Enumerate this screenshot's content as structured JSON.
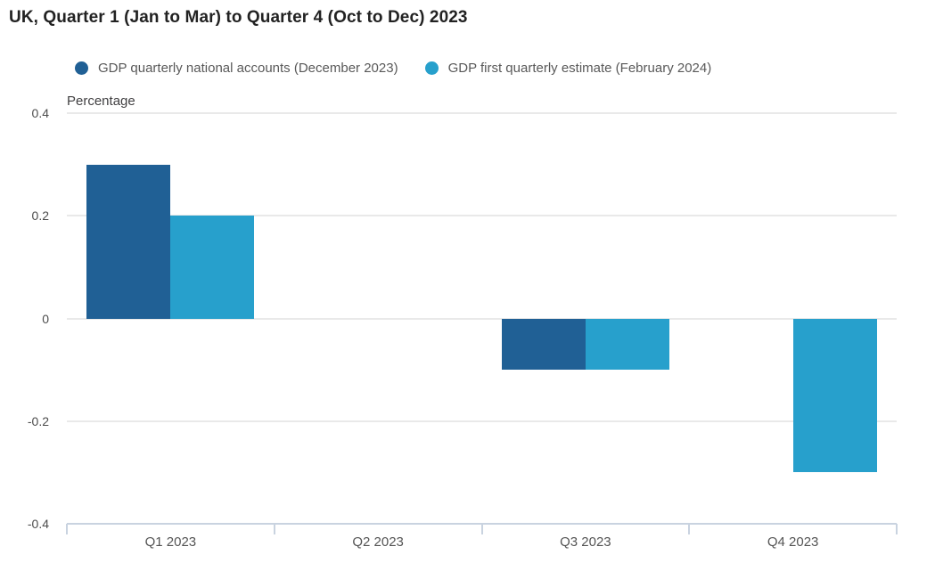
{
  "title": "UK, Quarter 1 (Jan to Mar) to Quarter 4 (Oct to Dec) 2023",
  "axis_title": "Percentage",
  "legend": {
    "items": [
      {
        "label": "GDP quarterly national accounts (December 2023)",
        "color": "#206095"
      },
      {
        "label": "GDP first quarterly estimate (February 2024)",
        "color": "#27a0cc"
      }
    ]
  },
  "chart_data": {
    "type": "bar",
    "categories": [
      "Q1 2023",
      "Q2 2023",
      "Q3 2023",
      "Q4 2023"
    ],
    "series": [
      {
        "name": "GDP quarterly national accounts (December 2023)",
        "color": "#206095",
        "values": [
          0.3,
          0.0,
          -0.1,
          null
        ]
      },
      {
        "name": "GDP first quarterly estimate (February 2024)",
        "color": "#27a0cc",
        "values": [
          0.2,
          0.0,
          -0.1,
          -0.3
        ]
      }
    ],
    "title": "UK, Quarter 1 (Jan to Mar) to Quarter 4 (Oct to Dec) 2023",
    "xlabel": "",
    "ylabel": "Percentage",
    "ylim": [
      -0.4,
      0.4
    ],
    "yticks": [
      0.4,
      0.2,
      0,
      -0.2,
      -0.4
    ],
    "grid": true,
    "legend_position": "top"
  },
  "colors": {
    "grid": "#e9e9e9",
    "axis": "#c9d3e0",
    "title_text": "#222222",
    "axis_label_text": "#4d4d4d",
    "legend_text": "#595959",
    "background": "#ffffff"
  }
}
